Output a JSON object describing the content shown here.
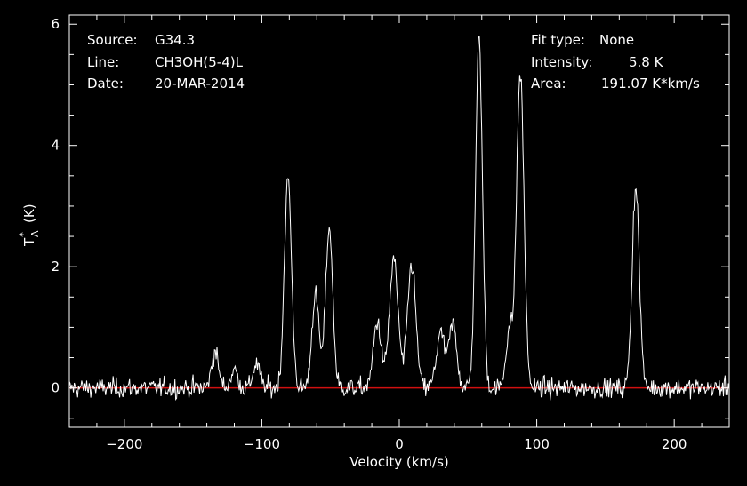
{
  "info_left": {
    "source_label": "Source:",
    "source_value": "G34.3",
    "line_label": "Line:",
    "line_value": "CH3OH(5-4)L",
    "date_label": "Date:",
    "date_value": "20-MAR-2014"
  },
  "info_right": {
    "fit_label": "Fit type:",
    "fit_value": "None",
    "intensity_label": "Intensity:",
    "intensity_value": "5.8 K",
    "area_label": "Area:",
    "area_value": "191.07 K*km/s"
  },
  "colors": {
    "background": "#000000",
    "axes": "#ffffff",
    "spectrum": "#ffffff",
    "baseline": "#d01010"
  },
  "chart_data": {
    "type": "line",
    "title": "",
    "xlabel": "Velocity (km/s)",
    "ylabel_main": "T",
    "ylabel_sup": "*",
    "ylabel_sub": "A",
    "ylabel_unit": "(K)",
    "xlim": [
      -240,
      240
    ],
    "ylim": [
      -0.65,
      6.15
    ],
    "xticks": [
      -200,
      -100,
      0,
      100,
      200
    ],
    "xtick_labels": [
      "−200",
      "−100",
      "0",
      "100",
      "200"
    ],
    "yticks": [
      0,
      2,
      4,
      6
    ],
    "ytick_labels": [
      "0",
      "2",
      "4",
      "6"
    ],
    "baseline": 0,
    "noise_rms": 0.08,
    "peaks": [
      {
        "center": -134,
        "amplitude": 0.6,
        "sigma": 2.5
      },
      {
        "center": -120,
        "amplitude": 0.3,
        "sigma": 2.5
      },
      {
        "center": -104,
        "amplitude": 0.4,
        "sigma": 2.5
      },
      {
        "center": -81,
        "amplitude": 3.45,
        "sigma": 2.6
      },
      {
        "center": -61,
        "amplitude": 1.55,
        "sigma": 2.6
      },
      {
        "center": -51,
        "amplitude": 2.65,
        "sigma": 2.6
      },
      {
        "center": -16,
        "amplitude": 1.1,
        "sigma": 2.8
      },
      {
        "center": -4,
        "amplitude": 2.1,
        "sigma": 3.2
      },
      {
        "center": 9,
        "amplitude": 2.05,
        "sigma": 3.0
      },
      {
        "center": 30,
        "amplitude": 0.9,
        "sigma": 3.0
      },
      {
        "center": 39,
        "amplitude": 1.05,
        "sigma": 2.8
      },
      {
        "center": 58,
        "amplitude": 5.75,
        "sigma": 2.5
      },
      {
        "center": 80,
        "amplitude": 0.95,
        "sigma": 2.5
      },
      {
        "center": 88,
        "amplitude": 5.2,
        "sigma": 2.7
      },
      {
        "center": 172,
        "amplitude": 3.35,
        "sigma": 2.6
      }
    ]
  }
}
